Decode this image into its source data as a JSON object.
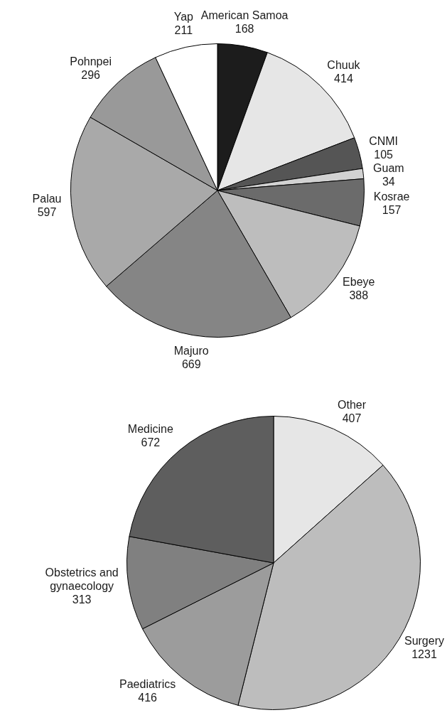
{
  "chart_data": [
    {
      "type": "pie",
      "categories": [
        "American Samoa",
        "Chuuk",
        "CNMI",
        "Guam",
        "Kosrae",
        "Ebeye",
        "Majuro",
        "Palau",
        "Pohnpei",
        "Yap"
      ],
      "values": [
        168,
        414,
        105,
        34,
        157,
        388,
        669,
        597,
        296,
        211
      ],
      "colors": [
        "#1c1c1c",
        "#e6e6e6",
        "#555555",
        "#d2d2d2",
        "#6b6b6b",
        "#bdbdbd",
        "#858585",
        "#a9a9a9",
        "#999999",
        "#ffffff"
      ],
      "data_labels": true,
      "legend": false
    },
    {
      "type": "pie",
      "categories": [
        "Other",
        "Surgery",
        "Paediatrics",
        "Obstetrics and gynaecology",
        "Medicine"
      ],
      "values": [
        407,
        1231,
        416,
        313,
        672
      ],
      "colors": [
        "#e6e6e6",
        "#bdbdbd",
        "#9c9c9c",
        "#808080",
        "#5e5e5e"
      ],
      "data_labels": true,
      "legend": false
    }
  ]
}
